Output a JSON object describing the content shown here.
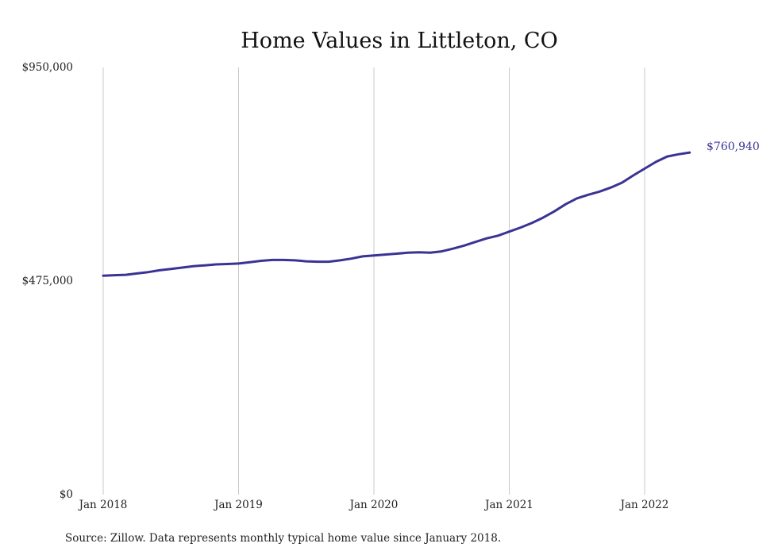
{
  "chart_data": {
    "type": "line",
    "title": "Home Values in Littleton, CO",
    "xlabel": "",
    "ylabel": "",
    "ylim": [
      0,
      950000
    ],
    "y_ticks": [
      {
        "value": 0,
        "label": "$0"
      },
      {
        "value": 475000,
        "label": "$475,000"
      },
      {
        "value": 950000,
        "label": "$950,000"
      }
    ],
    "x_ticks": [
      {
        "value": "2018-01",
        "label": "Jan 2018"
      },
      {
        "value": "2019-01",
        "label": "Jan 2019"
      },
      {
        "value": "2020-01",
        "label": "Jan 2020"
      },
      {
        "value": "2021-01",
        "label": "Jan 2021"
      },
      {
        "value": "2022-01",
        "label": "Jan 2022"
      }
    ],
    "grid": {
      "vertical": true,
      "horizontal": false
    },
    "line_color": "#3b3394",
    "series": [
      {
        "x": [
          "2018-01",
          "2018-02",
          "2018-03",
          "2018-04",
          "2018-05",
          "2018-06",
          "2018-07",
          "2018-08",
          "2018-09",
          "2018-10",
          "2018-11",
          "2018-12",
          "2019-01",
          "2019-02",
          "2019-03",
          "2019-04",
          "2019-05",
          "2019-06",
          "2019-07",
          "2019-08",
          "2019-09",
          "2019-10",
          "2019-11",
          "2019-12",
          "2020-01",
          "2020-02",
          "2020-03",
          "2020-04",
          "2020-05",
          "2020-06",
          "2020-07",
          "2020-08",
          "2020-09",
          "2020-10",
          "2020-11",
          "2020-12",
          "2021-01",
          "2021-02",
          "2021-03",
          "2021-04",
          "2021-05",
          "2021-06",
          "2021-07",
          "2021-08",
          "2021-09",
          "2021-10",
          "2021-11",
          "2021-12",
          "2022-01",
          "2022-02",
          "2022-03",
          "2022-04",
          "2022-05"
        ],
        "values": [
          487000,
          488000,
          489000,
          492000,
          495000,
          499000,
          502000,
          505000,
          508000,
          510000,
          512000,
          513000,
          514000,
          517000,
          520000,
          522000,
          522000,
          521000,
          519000,
          518000,
          518000,
          521000,
          525000,
          530000,
          532000,
          534000,
          536000,
          538000,
          539000,
          538000,
          541000,
          547000,
          554000,
          562000,
          570000,
          576000,
          585000,
          594000,
          604000,
          616000,
          630000,
          646000,
          659000,
          667000,
          674000,
          683000,
          694000,
          710000,
          725000,
          740000,
          752000,
          757000,
          760940
        ]
      }
    ],
    "end_label": "$760,940",
    "source": "Source: Zillow. Data represents monthly typical home value since January 2018."
  }
}
